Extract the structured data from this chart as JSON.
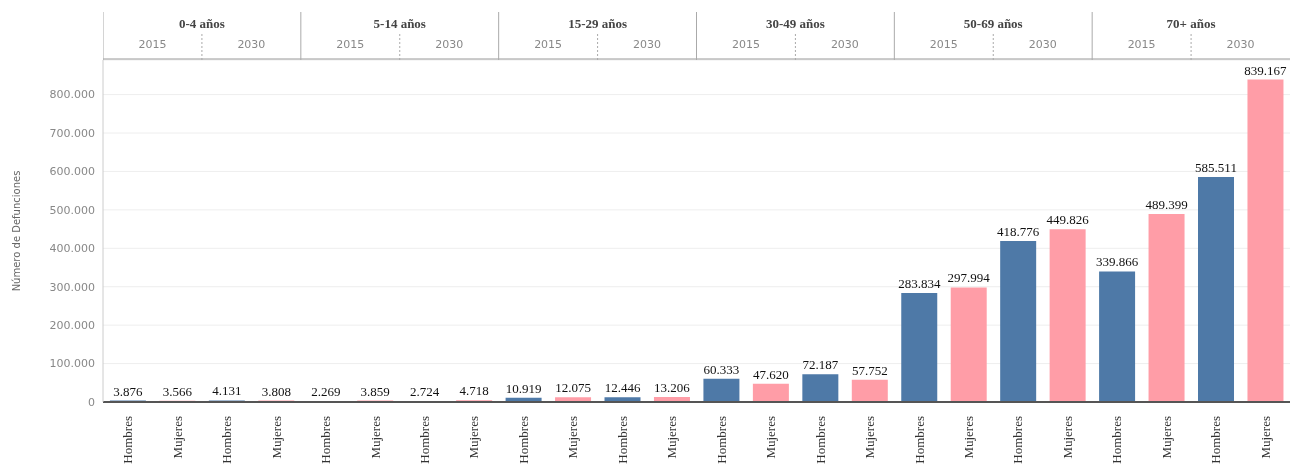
{
  "chart_data": {
    "type": "bar",
    "ylabel": "Número de Defunciones",
    "categories": [
      "Hombres",
      "Mujeres",
      "Hombres",
      "Mujeres",
      "Hombres",
      "Mujeres",
      "Hombres",
      "Mujeres",
      "Hombres",
      "Mujeres",
      "Hombres",
      "Mujeres",
      "Hombres",
      "Mujeres",
      "Hombres",
      "Mujeres",
      "Hombres",
      "Mujeres",
      "Hombres",
      "Mujeres",
      "Hombres",
      "Mujeres",
      "Hombres",
      "Mujeres"
    ],
    "values": [
      3876,
      3566,
      4131,
      3808,
      2269,
      3859,
      2724,
      4718,
      10919,
      12075,
      12446,
      13206,
      60333,
      47620,
      72187,
      57752,
      283834,
      297994,
      418776,
      449826,
      339866,
      489399,
      585511,
      839167
    ],
    "value_labels": [
      "3.876",
      "3.566",
      "4.131",
      "3.808",
      "2.269",
      "3.859",
      "2.724",
      "4.718",
      "10.919",
      "12.075",
      "12.446",
      "13.206",
      "60.333",
      "47.620",
      "72.187",
      "57.752",
      "283.834",
      "297.994",
      "418.776",
      "449.826",
      "339.866",
      "489.399",
      "585.511",
      "839.167"
    ],
    "colors": [
      "#4e79a7",
      "#ff9da7",
      "#4e79a7",
      "#ff9da7",
      "#4e79a7",
      "#ff9da7",
      "#4e79a7",
      "#ff9da7",
      "#4e79a7",
      "#ff9da7",
      "#4e79a7",
      "#ff9da7",
      "#4e79a7",
      "#ff9da7",
      "#4e79a7",
      "#ff9da7",
      "#4e79a7",
      "#ff9da7",
      "#4e79a7",
      "#ff9da7",
      "#4e79a7",
      "#ff9da7",
      "#4e79a7",
      "#ff9da7"
    ],
    "annotations": [
      "0-4 años",
      "5-14 años",
      "15-29 años",
      "30-49 años",
      "50-69 años",
      "70+ años",
      "2015",
      "2030",
      "2015",
      "2030",
      "2015",
      "2030",
      "2015",
      "2030",
      "2015",
      "2030",
      "2015",
      "2030"
    ],
    "ylim": [
      0,
      890000
    ],
    "yticks": [
      {
        "value": 0,
        "label": "0"
      },
      {
        "value": 100000,
        "label": "100.000"
      },
      {
        "value": 200000,
        "label": "200.000"
      },
      {
        "value": 300000,
        "label": "300.000"
      },
      {
        "value": 400000,
        "label": "400.000"
      },
      {
        "value": 500000,
        "label": "500.000"
      },
      {
        "value": 600000,
        "label": "600.000"
      },
      {
        "value": 700000,
        "label": "700.000"
      },
      {
        "value": 800000,
        "label": "800.000"
      }
    ],
    "grid": "y",
    "legend": false
  }
}
